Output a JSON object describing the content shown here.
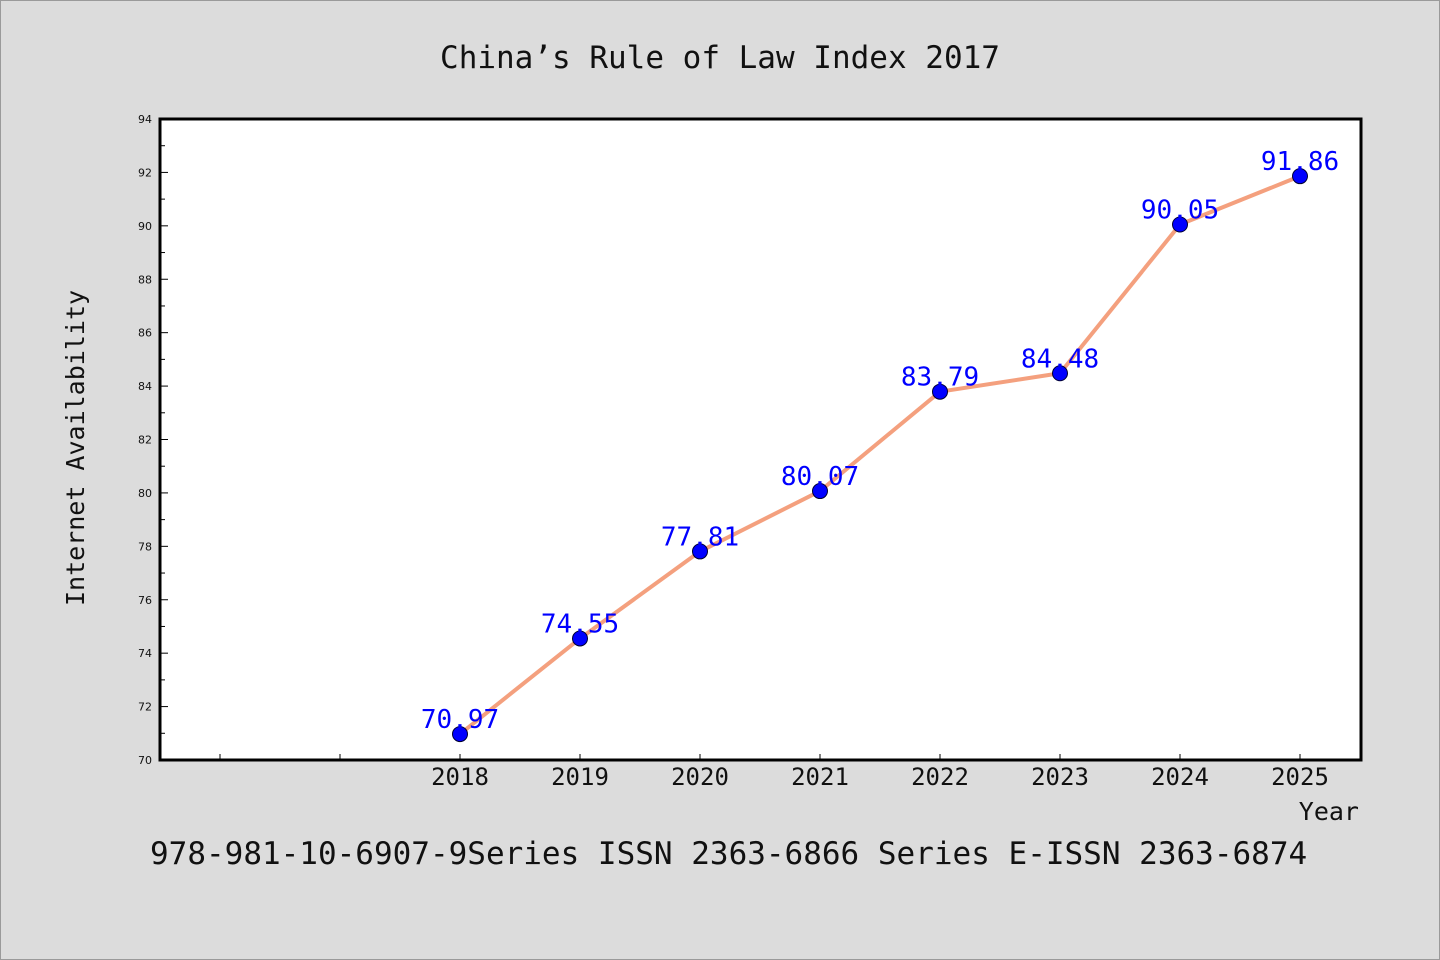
{
  "chart_data": {
    "type": "line",
    "title": "China’s Rule of Law Index 2017",
    "xlabel": "Year",
    "ylabel": "Internet Availability",
    "categories": [
      "2018",
      "2019",
      "2020",
      "2021",
      "2022",
      "2023",
      "2024",
      "2025"
    ],
    "series": [
      {
        "values": [
          70.97,
          74.55,
          77.81,
          80.07,
          83.79,
          84.48,
          90.05,
          91.86
        ],
        "data_labels": [
          "70.97",
          "74.55",
          "77.81",
          "80.07",
          "83.79",
          "84.48",
          "90.05",
          "91.86"
        ]
      }
    ],
    "ylim": [
      70,
      94
    ],
    "yticks": [
      "70",
      "72",
      "74",
      "76",
      "78",
      "80",
      "82",
      "84",
      "86",
      "88",
      "90",
      "92",
      "94"
    ],
    "grid": false,
    "line_color": "#f4a07e",
    "marker_color": "#0000ff",
    "label_color": "#0000ff",
    "background": "#dcdcdc",
    "plot_background": "#ffffff"
  },
  "caption": "978-981-10-6907-9Series ISSN 2363-6866 Series E-ISSN 2363-6874"
}
